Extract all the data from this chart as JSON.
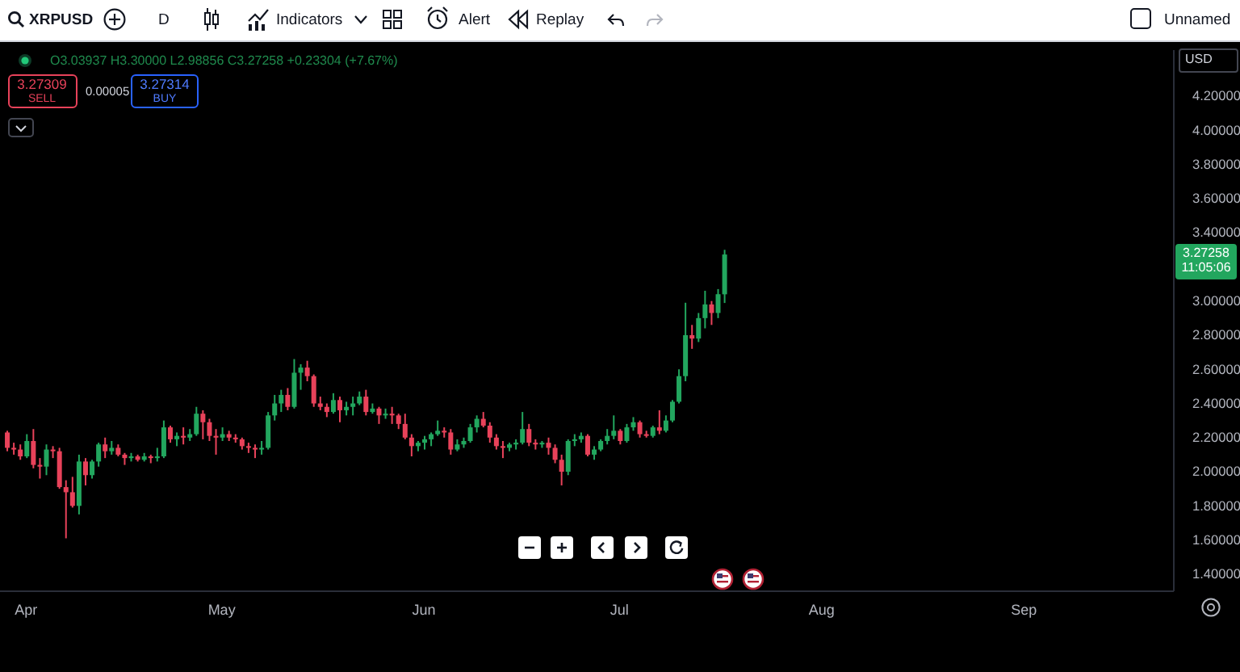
{
  "chart_data": {
    "type": "candlestick",
    "title": "XRPUSD",
    "annotations": [
      "O3.03937 H3.30000 L2.98856 C3.27258 +0.23304 (+7.67%)",
      "3.27309",
      "SELL",
      "0.00005",
      "3.27314",
      "BUY",
      "D",
      "Indicators",
      "Alert",
      "Replay",
      "Unnamed",
      "USD",
      "3.27258",
      "11:05:06"
    ],
    "x": [
      "--03-29",
      "--03-30",
      "--03-31",
      "--04-01",
      "--04-02",
      "--04-03",
      "--04-04",
      "--04-05",
      "--04-06",
      "--04-07",
      "--04-08",
      "--04-09",
      "--04-10",
      "--04-11",
      "--04-12",
      "--04-13",
      "--04-14",
      "--04-15",
      "--04-16",
      "--04-17",
      "--04-18",
      "--04-19",
      "--04-20",
      "--04-21",
      "--04-22",
      "--04-23",
      "--04-24",
      "--04-25",
      "--04-26",
      "--04-27",
      "--04-28",
      "--04-29",
      "--04-30",
      "--05-01",
      "--05-02",
      "--05-03",
      "--05-04",
      "--05-05",
      "--05-06",
      "--05-07",
      "--05-08",
      "--05-09",
      "--05-10",
      "--05-11",
      "--05-12",
      "--05-13",
      "--05-14",
      "--05-15",
      "--05-16",
      "--05-17",
      "--05-18",
      "--05-19",
      "--05-20",
      "--05-21",
      "--05-22",
      "--05-23",
      "--05-24",
      "--05-25",
      "--05-26",
      "--05-27",
      "--05-28",
      "--05-29",
      "--05-30",
      "--05-31",
      "--06-01",
      "--06-02",
      "--06-03",
      "--06-04",
      "--06-05",
      "--06-06",
      "--06-07",
      "--06-08",
      "--06-09",
      "--06-10",
      "--06-11",
      "--06-12",
      "--06-13",
      "--06-14",
      "--06-15",
      "--06-16",
      "--06-17",
      "--06-18",
      "--06-19",
      "--06-20",
      "--06-21",
      "--06-22",
      "--06-23",
      "--06-24",
      "--06-25",
      "--06-26",
      "--06-27",
      "--06-28",
      "--06-29",
      "--06-30",
      "--07-01",
      "--07-02",
      "--07-03",
      "--07-04",
      "--07-05",
      "--07-06",
      "--07-07",
      "--07-08",
      "--07-09",
      "--07-10",
      "--07-11",
      "--07-12",
      "--07-13",
      "--07-14",
      "--07-15",
      "--07-16",
      "--07-17"
    ],
    "ohlc": [
      [
        2.23,
        2.24,
        2.12,
        2.14
      ],
      [
        2.14,
        2.17,
        2.1,
        2.13
      ],
      [
        2.13,
        2.16,
        2.07,
        2.09
      ],
      [
        2.09,
        2.22,
        2.08,
        2.18
      ],
      [
        2.18,
        2.25,
        2.02,
        2.04
      ],
      [
        2.04,
        2.08,
        1.96,
        2.03
      ],
      [
        2.03,
        2.16,
        1.98,
        2.13
      ],
      [
        2.13,
        2.15,
        2.08,
        2.12
      ],
      [
        2.12,
        2.14,
        1.9,
        1.91
      ],
      [
        1.91,
        1.95,
        1.61,
        1.88
      ],
      [
        1.88,
        1.97,
        1.79,
        1.8
      ],
      [
        1.8,
        2.1,
        1.75,
        2.06
      ],
      [
        2.06,
        2.08,
        1.92,
        1.98
      ],
      [
        1.98,
        2.07,
        1.96,
        2.06
      ],
      [
        2.06,
        2.17,
        2.03,
        2.16
      ],
      [
        2.16,
        2.2,
        2.08,
        2.12
      ],
      [
        2.12,
        2.18,
        2.1,
        2.14
      ],
      [
        2.14,
        2.16,
        2.09,
        2.1
      ],
      [
        2.1,
        2.11,
        2.04,
        2.08
      ],
      [
        2.08,
        2.11,
        2.06,
        2.09
      ],
      [
        2.09,
        2.1,
        2.06,
        2.07
      ],
      [
        2.07,
        2.11,
        2.06,
        2.09
      ],
      [
        2.09,
        2.1,
        2.05,
        2.08
      ],
      [
        2.08,
        2.14,
        2.06,
        2.09
      ],
      [
        2.09,
        2.3,
        2.08,
        2.26
      ],
      [
        2.26,
        2.27,
        2.17,
        2.19
      ],
      [
        2.19,
        2.23,
        2.15,
        2.21
      ],
      [
        2.21,
        2.26,
        2.16,
        2.2
      ],
      [
        2.2,
        2.25,
        2.18,
        2.22
      ],
      [
        2.22,
        2.38,
        2.21,
        2.34
      ],
      [
        2.34,
        2.36,
        2.19,
        2.29
      ],
      [
        2.29,
        2.31,
        2.18,
        2.21
      ],
      [
        2.21,
        2.25,
        2.1,
        2.2
      ],
      [
        2.2,
        2.26,
        2.18,
        2.22
      ],
      [
        2.22,
        2.24,
        2.18,
        2.2
      ],
      [
        2.2,
        2.22,
        2.17,
        2.19
      ],
      [
        2.19,
        2.2,
        2.13,
        2.15
      ],
      [
        2.15,
        2.17,
        2.11,
        2.14
      ],
      [
        2.14,
        2.16,
        2.08,
        2.13
      ],
      [
        2.13,
        2.18,
        2.1,
        2.14
      ],
      [
        2.14,
        2.35,
        2.13,
        2.33
      ],
      [
        2.33,
        2.45,
        2.3,
        2.4
      ],
      [
        2.4,
        2.48,
        2.35,
        2.45
      ],
      [
        2.45,
        2.49,
        2.36,
        2.38
      ],
      [
        2.38,
        2.66,
        2.37,
        2.58
      ],
      [
        2.58,
        2.63,
        2.48,
        2.61
      ],
      [
        2.61,
        2.65,
        2.53,
        2.56
      ],
      [
        2.56,
        2.57,
        2.38,
        2.4
      ],
      [
        2.4,
        2.44,
        2.36,
        2.38
      ],
      [
        2.38,
        2.4,
        2.32,
        2.35
      ],
      [
        2.35,
        2.46,
        2.34,
        2.42
      ],
      [
        2.42,
        2.44,
        2.29,
        2.36
      ],
      [
        2.36,
        2.41,
        2.33,
        2.38
      ],
      [
        2.38,
        2.44,
        2.33,
        2.4
      ],
      [
        2.4,
        2.47,
        2.39,
        2.44
      ],
      [
        2.44,
        2.48,
        2.33,
        2.35
      ],
      [
        2.35,
        2.4,
        2.34,
        2.37
      ],
      [
        2.37,
        2.38,
        2.28,
        2.33
      ],
      [
        2.33,
        2.37,
        2.31,
        2.34
      ],
      [
        2.34,
        2.38,
        2.28,
        2.33
      ],
      [
        2.33,
        2.34,
        2.25,
        2.28
      ],
      [
        2.28,
        2.34,
        2.19,
        2.2
      ],
      [
        2.2,
        2.22,
        2.09,
        2.15
      ],
      [
        2.15,
        2.18,
        2.12,
        2.17
      ],
      [
        2.17,
        2.21,
        2.13,
        2.19
      ],
      [
        2.19,
        2.23,
        2.15,
        2.22
      ],
      [
        2.22,
        2.3,
        2.21,
        2.24
      ],
      [
        2.24,
        2.26,
        2.2,
        2.23
      ],
      [
        2.23,
        2.25,
        2.1,
        2.13
      ],
      [
        2.13,
        2.19,
        2.12,
        2.16
      ],
      [
        2.16,
        2.2,
        2.14,
        2.18
      ],
      [
        2.18,
        2.28,
        2.17,
        2.26
      ],
      [
        2.26,
        2.33,
        2.23,
        2.31
      ],
      [
        2.31,
        2.35,
        2.26,
        2.27
      ],
      [
        2.27,
        2.29,
        2.17,
        2.2
      ],
      [
        2.2,
        2.22,
        2.13,
        2.15
      ],
      [
        2.15,
        2.18,
        2.08,
        2.14
      ],
      [
        2.14,
        2.17,
        2.12,
        2.16
      ],
      [
        2.16,
        2.19,
        2.13,
        2.17
      ],
      [
        2.17,
        2.35,
        2.16,
        2.25
      ],
      [
        2.25,
        2.28,
        2.15,
        2.17
      ],
      [
        2.17,
        2.19,
        2.13,
        2.16
      ],
      [
        2.16,
        2.18,
        2.14,
        2.17
      ],
      [
        2.17,
        2.2,
        2.1,
        2.14
      ],
      [
        2.14,
        2.16,
        2.05,
        2.07
      ],
      [
        2.07,
        2.1,
        1.92,
        2.0
      ],
      [
        2.0,
        2.19,
        1.98,
        2.18
      ],
      [
        2.18,
        2.22,
        2.15,
        2.19
      ],
      [
        2.19,
        2.23,
        2.17,
        2.21
      ],
      [
        2.21,
        2.22,
        2.09,
        2.1
      ],
      [
        2.1,
        2.15,
        2.07,
        2.13
      ],
      [
        2.13,
        2.19,
        2.12,
        2.18
      ],
      [
        2.18,
        2.25,
        2.16,
        2.21
      ],
      [
        2.21,
        2.33,
        2.19,
        2.24
      ],
      [
        2.24,
        2.25,
        2.16,
        2.18
      ],
      [
        2.18,
        2.28,
        2.17,
        2.26
      ],
      [
        2.26,
        2.32,
        2.24,
        2.29
      ],
      [
        2.29,
        2.3,
        2.2,
        2.22
      ],
      [
        2.22,
        2.24,
        2.2,
        2.21
      ],
      [
        2.21,
        2.27,
        2.2,
        2.26
      ],
      [
        2.26,
        2.36,
        2.22,
        2.24
      ],
      [
        2.24,
        2.33,
        2.23,
        2.3
      ],
      [
        2.3,
        2.42,
        2.29,
        2.41
      ],
      [
        2.41,
        2.6,
        2.4,
        2.56
      ],
      [
        2.56,
        2.99,
        2.53,
        2.8
      ],
      [
        2.8,
        2.86,
        2.72,
        2.78
      ],
      [
        2.78,
        2.93,
        2.76,
        2.9
      ],
      [
        2.9,
        3.06,
        2.84,
        2.98
      ],
      [
        2.98,
        3.0,
        2.86,
        2.93
      ],
      [
        2.93,
        3.07,
        2.9,
        3.04
      ],
      [
        3.03937,
        3.3,
        2.98856,
        3.27258
      ]
    ],
    "colors": [
      "#e8425a",
      "#e8425a",
      "#e8425a",
      "#22a65e",
      "#e8425a",
      "#e8425a",
      "#22a65e",
      "#e8425a",
      "#e8425a",
      "#e8425a",
      "#e8425a",
      "#22a65e",
      "#e8425a",
      "#22a65e",
      "#22a65e",
      "#e8425a",
      "#22a65e",
      "#e8425a",
      "#e8425a",
      "#22a65e",
      "#e8425a",
      "#22a65e",
      "#e8425a",
      "#22a65e",
      "#22a65e",
      "#e8425a",
      "#22a65e",
      "#e8425a",
      "#22a65e",
      "#22a65e",
      "#e8425a",
      "#e8425a",
      "#e8425a",
      "#22a65e",
      "#e8425a",
      "#e8425a",
      "#e8425a",
      "#e8425a",
      "#e8425a",
      "#22a65e",
      "#22a65e",
      "#22a65e",
      "#22a65e",
      "#e8425a",
      "#22a65e",
      "#22a65e",
      "#e8425a",
      "#e8425a",
      "#e8425a",
      "#e8425a",
      "#22a65e",
      "#e8425a",
      "#22a65e",
      "#22a65e",
      "#22a65e",
      "#e8425a",
      "#22a65e",
      "#e8425a",
      "#22a65e",
      "#e8425a",
      "#e8425a",
      "#e8425a",
      "#e8425a",
      "#22a65e",
      "#22a65e",
      "#22a65e",
      "#22a65e",
      "#e8425a",
      "#e8425a",
      "#22a65e",
      "#22a65e",
      "#22a65e",
      "#22a65e",
      "#e8425a",
      "#e8425a",
      "#e8425a",
      "#e8425a",
      "#22a65e",
      "#22a65e",
      "#22a65e",
      "#e8425a",
      "#e8425a",
      "#22a65e",
      "#e8425a",
      "#e8425a",
      "#e8425a",
      "#22a65e",
      "#22a65e",
      "#22a65e",
      "#e8425a",
      "#22a65e",
      "#22a65e",
      "#22a65e",
      "#22a65e",
      "#e8425a",
      "#22a65e",
      "#22a65e",
      "#e8425a",
      "#e8425a",
      "#22a65e",
      "#e8425a",
      "#22a65e",
      "#22a65e",
      "#22a65e",
      "#22a65e",
      "#e8425a",
      "#22a65e",
      "#22a65e",
      "#e8425a",
      "#22a65e",
      "#22a65e"
    ],
    "xlim": [
      "--03-28",
      "--09-24"
    ],
    "xticks": [
      {
        "value": "--04-01",
        "label": "Apr"
      },
      {
        "value": "--05-01",
        "label": "May"
      },
      {
        "value": "--06-01",
        "label": "Jun"
      },
      {
        "value": "--07-01",
        "label": "Jul"
      },
      {
        "value": "--08-01",
        "label": "Aug"
      },
      {
        "value": "--09-01",
        "label": "Sep"
      }
    ],
    "ylim": [
      1.3,
      4.47
    ],
    "yticks": [
      {
        "value": 1.4,
        "label": "1.40000"
      },
      {
        "value": 1.6,
        "label": "1.60000"
      },
      {
        "value": 1.8,
        "label": "1.80000"
      },
      {
        "value": 2.0,
        "label": "2.00000"
      },
      {
        "value": 2.2,
        "label": "2.20000"
      },
      {
        "value": 2.4,
        "label": "2.40000"
      },
      {
        "value": 2.6,
        "label": "2.60000"
      },
      {
        "value": 2.8,
        "label": "2.80000"
      },
      {
        "value": 3.0,
        "label": "3.00000"
      },
      {
        "value": 3.4,
        "label": "3.40000"
      },
      {
        "value": 3.6,
        "label": "3.60000"
      },
      {
        "value": 3.8,
        "label": "3.80000"
      },
      {
        "value": 4.0,
        "label": "4.00000"
      },
      {
        "value": 4.2,
        "label": "4.20000"
      }
    ]
  }
}
